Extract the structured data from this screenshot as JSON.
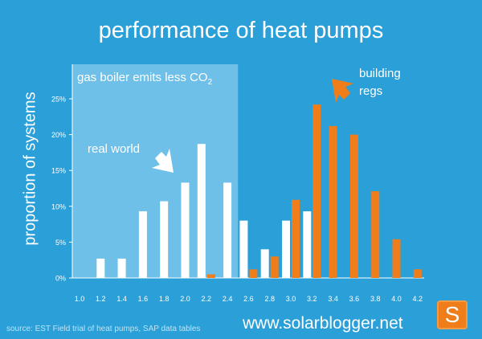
{
  "title": "performance of heat pumps",
  "ylabel": "proportion of systems",
  "source": "source: EST Field trial of heat pumps, SAP data tables",
  "website": "www.solarblogger.net",
  "logo_letter": "S",
  "colors": {
    "background": "#2a9fd8",
    "shaded_region": "#86cbee",
    "real_world_bars": "#ffffff",
    "building_regs_bars": "#ef7d1a",
    "arrow": "#ffffff",
    "building_regs_arrow": "#ef7d1a"
  },
  "annotations": {
    "gas_boiler_text": "gas boiler emits less CO",
    "gas_boiler_sub": "2",
    "real_world": "real world",
    "building_regs_line1": "building",
    "building_regs_line2": "regs"
  },
  "chart_data": {
    "type": "bar",
    "x": [
      1.0,
      1.2,
      1.4,
      1.6,
      1.8,
      2.0,
      2.2,
      2.4,
      2.6,
      2.8,
      3.0,
      3.2,
      3.4,
      3.6,
      3.8,
      4.0,
      4.2
    ],
    "x_tick_labels": [
      "1.0",
      "1.2",
      "1.4",
      "1.6",
      "1.8",
      "2.0",
      "2.2",
      "2.4",
      "2.6",
      "2.8",
      "3.0",
      "3.2",
      "3.4",
      "3.6",
      "3.8",
      "4.0",
      "4.2"
    ],
    "ylim": [
      0,
      25
    ],
    "y_ticks": [
      0,
      5,
      10,
      15,
      20,
      25
    ],
    "y_tick_labels": [
      "0%",
      "5%",
      "10%",
      "15%",
      "20%",
      "25%"
    ],
    "series": [
      {
        "key": "real-world",
        "values": [
          0,
          2.7,
          2.7,
          9.3,
          10.7,
          13.3,
          18.7,
          13.3,
          8.0,
          4.0,
          8.0,
          9.3,
          0,
          0,
          0,
          0,
          0
        ]
      },
      {
        "key": "building-regs",
        "values": [
          0,
          0,
          0,
          0,
          0,
          0,
          0.5,
          0,
          1.2,
          3.0,
          10.9,
          24.2,
          21.2,
          20.0,
          12.1,
          5.4,
          1.2
        ]
      }
    ],
    "shaded_region_x": [
      1.0,
      2.5
    ],
    "grid": false
  }
}
